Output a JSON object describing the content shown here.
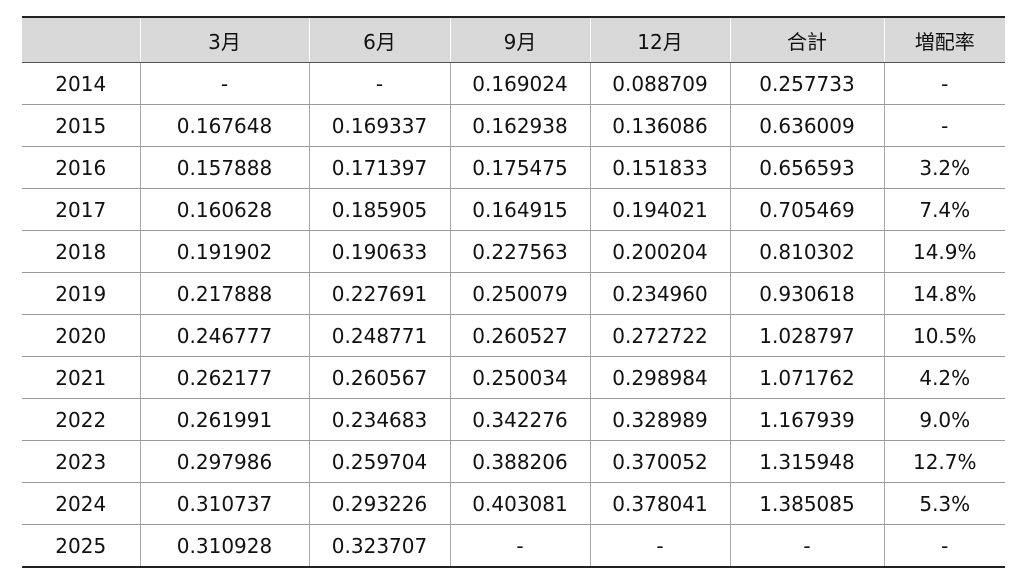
{
  "table": {
    "headers": [
      "",
      "3月",
      "6月",
      "9月",
      "12月",
      "合計",
      "増配率"
    ],
    "rows": [
      [
        "2014",
        "-",
        "-",
        "0.169024",
        "0.088709",
        "0.257733",
        "-"
      ],
      [
        "2015",
        "0.167648",
        "0.169337",
        "0.162938",
        "0.136086",
        "0.636009",
        "-"
      ],
      [
        "2016",
        "0.157888",
        "0.171397",
        "0.175475",
        "0.151833",
        "0.656593",
        "3.2%"
      ],
      [
        "2017",
        "0.160628",
        "0.185905",
        "0.164915",
        "0.194021",
        "0.705469",
        "7.4%"
      ],
      [
        "2018",
        "0.191902",
        "0.190633",
        "0.227563",
        "0.200204",
        "0.810302",
        "14.9%"
      ],
      [
        "2019",
        "0.217888",
        "0.227691",
        "0.250079",
        "0.234960",
        "0.930618",
        "14.8%"
      ],
      [
        "2020",
        "0.246777",
        "0.248771",
        "0.260527",
        "0.272722",
        "1.028797",
        "10.5%"
      ],
      [
        "2021",
        "0.262177",
        "0.260567",
        "0.250034",
        "0.298984",
        "1.071762",
        "4.2%"
      ],
      [
        "2022",
        "0.261991",
        "0.234683",
        "0.342276",
        "0.328989",
        "1.167939",
        "9.0%"
      ],
      [
        "2023",
        "0.297986",
        "0.259704",
        "0.388206",
        "0.370052",
        "1.315948",
        "12.7%"
      ],
      [
        "2024",
        "0.310737",
        "0.293226",
        "0.403081",
        "0.378041",
        "1.385085",
        "5.3%"
      ],
      [
        "2025",
        "0.310928",
        "0.323707",
        "-",
        "-",
        "-",
        "-"
      ]
    ]
  },
  "colors": {
    "header_background": "#d9d9d9",
    "rule": "#222222",
    "grid": "#a8a8a8"
  }
}
